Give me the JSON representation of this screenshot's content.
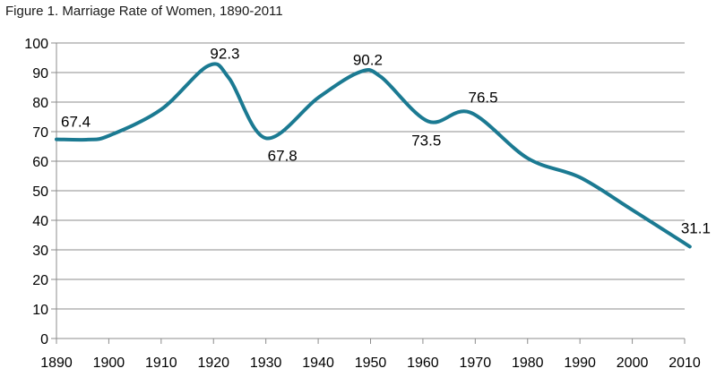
{
  "chart_data": {
    "type": "line",
    "title": "Figure 1. Marriage Rate of Women, 1890-2011",
    "xlabel": "",
    "ylabel": "",
    "xlim": [
      1890,
      2010
    ],
    "ylim": [
      0,
      100
    ],
    "x_ticks": [
      "1890",
      "1900",
      "1910",
      "1920",
      "1930",
      "1940",
      "1950",
      "1960",
      "1970",
      "1980",
      "1990",
      "2000",
      "2010"
    ],
    "y_ticks": [
      "0",
      "10",
      "20",
      "30",
      "40",
      "50",
      "60",
      "70",
      "80",
      "90",
      "100"
    ],
    "grid": true,
    "legend": "none",
    "line_color": "#1b7a92",
    "series": [
      {
        "x": [
          1890,
          1896,
          1900,
          1910,
          1919,
          1923,
          1930,
          1940,
          1948,
          1952,
          1961,
          1969,
          1980,
          1990,
          2000,
          2011
        ],
        "y": [
          67.4,
          67.3,
          68.6,
          77.5,
          92.3,
          88.0,
          67.8,
          81.5,
          90.2,
          88.5,
          73.5,
          76.5,
          61.0,
          54.5,
          43.5,
          31.1
        ]
      }
    ],
    "data_labels": [
      {
        "x": 1890,
        "y": 67.4,
        "text": "67.4"
      },
      {
        "x": 1919,
        "y": 92.3,
        "text": "92.3"
      },
      {
        "x": 1930,
        "y": 67.8,
        "text": "67.8"
      },
      {
        "x": 1948,
        "y": 90.2,
        "text": "90.2"
      },
      {
        "x": 1961,
        "y": 73.5,
        "text": "73.5"
      },
      {
        "x": 1969,
        "y": 76.5,
        "text": "76.5"
      },
      {
        "x": 2011,
        "y": 31.1,
        "text": "31.1"
      }
    ]
  }
}
